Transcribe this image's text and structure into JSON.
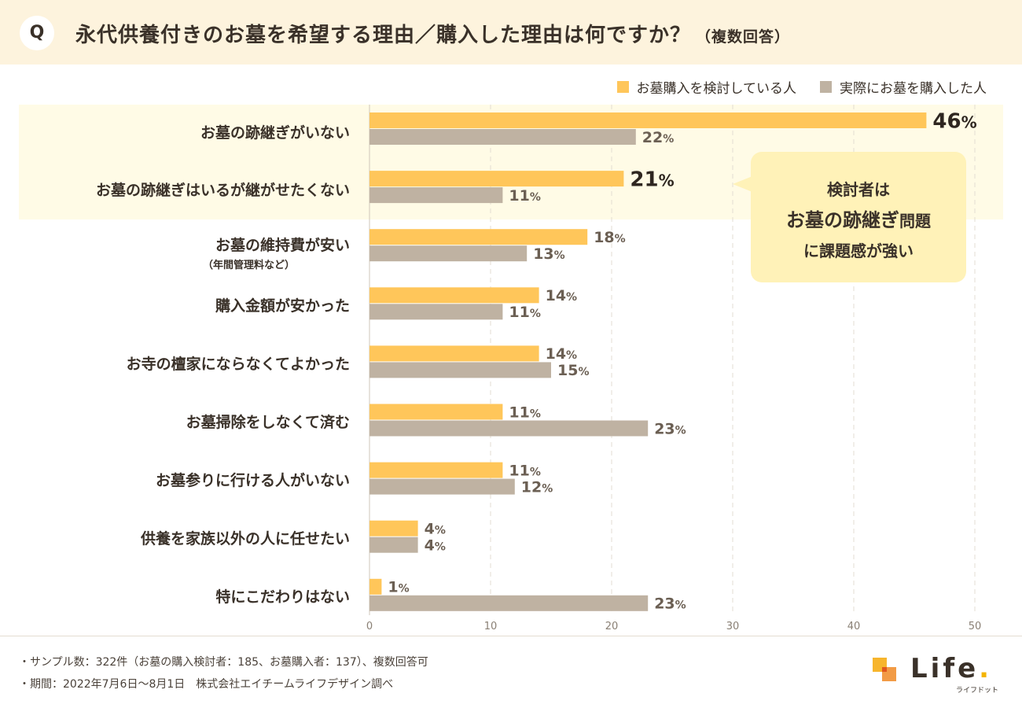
{
  "header": {
    "badge": "Q",
    "title": "永代供養付きのお墓を希望する理由／購入した理由は何ですか？",
    "title_sub": "（複数回答）"
  },
  "chart_data": {
    "type": "bar",
    "orientation": "horizontal",
    "categories": [
      "お墓の跡継ぎがいない",
      "お墓の跡継ぎはいるが継がせたくない",
      "お墓の維持費が安い",
      "購入金額が安かった",
      "お寺の檀家にならなくてよかった",
      "お墓掃除をしなくて済む",
      "お墓参りに行ける人がいない",
      "供養を家族以外の人に任せたい",
      "特にこだわりはない"
    ],
    "category_notes": [
      "",
      "",
      "（年間管理料など）",
      "",
      "",
      "",
      "",
      "",
      ""
    ],
    "series": [
      {
        "name": "お墓購入を検討している人",
        "color": "#ffc65a",
        "values": [
          46,
          21,
          18,
          14,
          14,
          11,
          11,
          4,
          1
        ]
      },
      {
        "name": "実際にお墓を購入した人",
        "color": "#bfb2a2",
        "values": [
          22,
          11,
          13,
          11,
          15,
          23,
          12,
          4,
          23
        ]
      }
    ],
    "value_suffix": "%",
    "xlim": [
      0,
      50
    ],
    "xticks": [
      0,
      10,
      20,
      30,
      40,
      50
    ],
    "grid": "dashed-vertical",
    "legend": "top-right",
    "highlighted_categories": [
      0,
      1
    ]
  },
  "callout": {
    "line1": "検討者は",
    "line2_main": "お墓の跡継ぎ",
    "line2_small": "問題",
    "line3": "に課題感が強い"
  },
  "footnotes": [
    "・サンプル数：322件（お墓の購入検討者：185、お墓購入者：137）、複数回答可",
    "・期間：2022年7月6日〜8月1日　株式会社エイチームライフデザイン調べ"
  ],
  "logo": {
    "text": "Life",
    "dot": ".",
    "sub": "ライフドット"
  }
}
